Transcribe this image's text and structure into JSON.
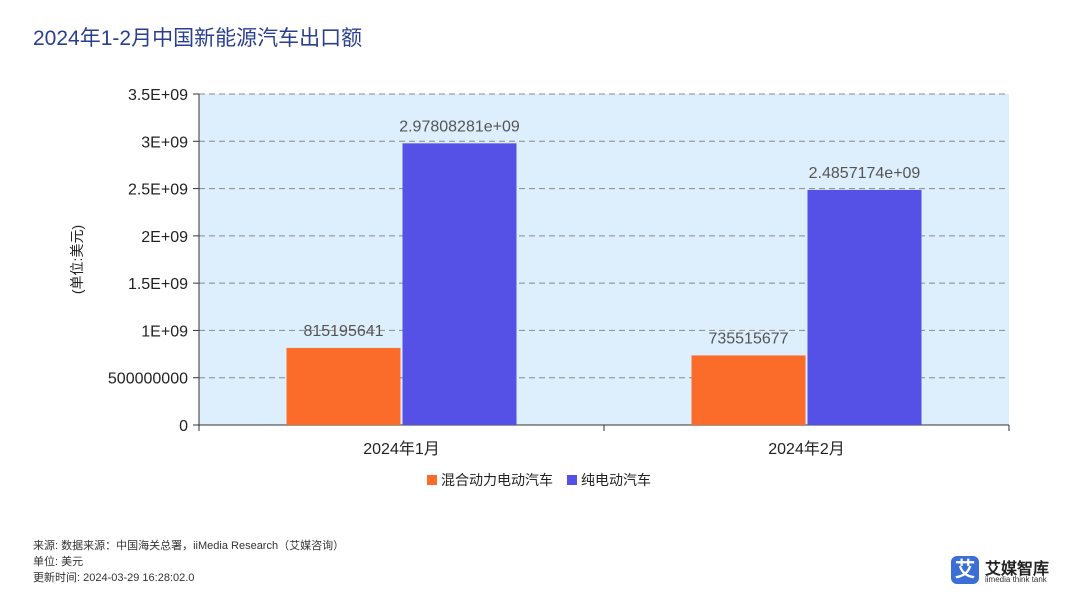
{
  "title": "2024年1-2月中国新能源汽车出口额",
  "chart_data": {
    "type": "bar",
    "title": "2024年1-2月中国新能源汽车出口额",
    "categories": [
      "2024年1月",
      "2024年2月"
    ],
    "series": [
      {
        "name": "混合动力电动汽车",
        "color": "#fb6c2a",
        "values": [
          815195641,
          735515677
        ],
        "labels": [
          "815195641",
          "735515677"
        ]
      },
      {
        "name": "纯电动汽车",
        "color": "#5550e6",
        "values": [
          2978082810,
          2485717400
        ],
        "labels": [
          "2.97808281e+09",
          "2.4857174e+09"
        ]
      }
    ],
    "ylabel": "(单位:美元)",
    "xlabel": "",
    "ylim": [
      0,
      3500000000
    ],
    "yticks": [
      0,
      500000000,
      1000000000,
      1500000000,
      2000000000,
      2500000000,
      3000000000,
      3500000000
    ],
    "ytick_labels": [
      "0",
      "500000000",
      "1E+09",
      "1.5E+09",
      "2E+09",
      "2.5E+09",
      "3E+09",
      "3.5E+09"
    ],
    "grid": true,
    "legend_position": "bottom-center",
    "plot_background": "#ddeefc"
  },
  "footer": {
    "source": "来源: 数据来源：中国海关总署，iiMedia Research（艾媒咨询）",
    "unit": "单位: 美元",
    "updated": "更新时间: 2024-03-29 16:28:02.0"
  },
  "brand": {
    "badge": "艾",
    "name": "艾媒智库",
    "subtitle": "iimedia think tank"
  }
}
